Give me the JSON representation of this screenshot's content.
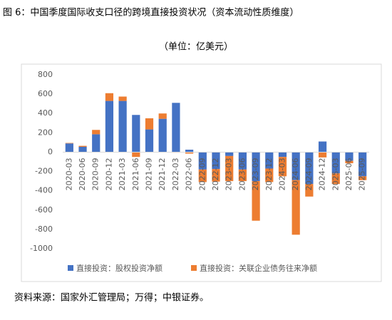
{
  "chart_data": {
    "type": "stacked_bar",
    "title": "图 6：中国季度国际收支口径的跨境直接投资状况（资本流动性质维度）",
    "subtitle": "（单位：亿美元）",
    "source": "资料来源：国家外汇管理局；万得；中银证券。",
    "categories": [
      "2020-03",
      "2020-06",
      "2020-09",
      "2020-12",
      "2021-03",
      "2021-06",
      "2021-09",
      "2021-12",
      "2022-03",
      "2022-06",
      "2022-09",
      "2022-12",
      "2023-03",
      "2023-06",
      "2023-09",
      "2023-12",
      "2024-03",
      "2024-06",
      "2024-09",
      "2024-12",
      "2025-03",
      "2025-06",
      "2025-09"
    ],
    "series": [
      {
        "name": "直接投资：股权投资净额",
        "color": "#4472c4",
        "values": [
          90,
          55,
          185,
          530,
          530,
          385,
          235,
          345,
          510,
          25,
          -180,
          -175,
          -40,
          -180,
          -300,
          -170,
          -50,
          -290,
          -330,
          110,
          -220,
          -90,
          -250
        ]
      },
      {
        "name": "直接投资：关联企业债务往来净额",
        "color": "#ed7d31",
        "values": [
          5,
          10,
          45,
          80,
          45,
          -50,
          115,
          55,
          -5,
          -15,
          -130,
          -130,
          -260,
          -120,
          -410,
          -140,
          -200,
          -565,
          -130,
          -55,
          -110,
          -25,
          -40
        ]
      }
    ],
    "ylim": [
      -1000,
      800
    ],
    "yticks": [
      -1000,
      -800,
      -600,
      -400,
      -200,
      0,
      200,
      400,
      600,
      800
    ],
    "grid": false
  }
}
